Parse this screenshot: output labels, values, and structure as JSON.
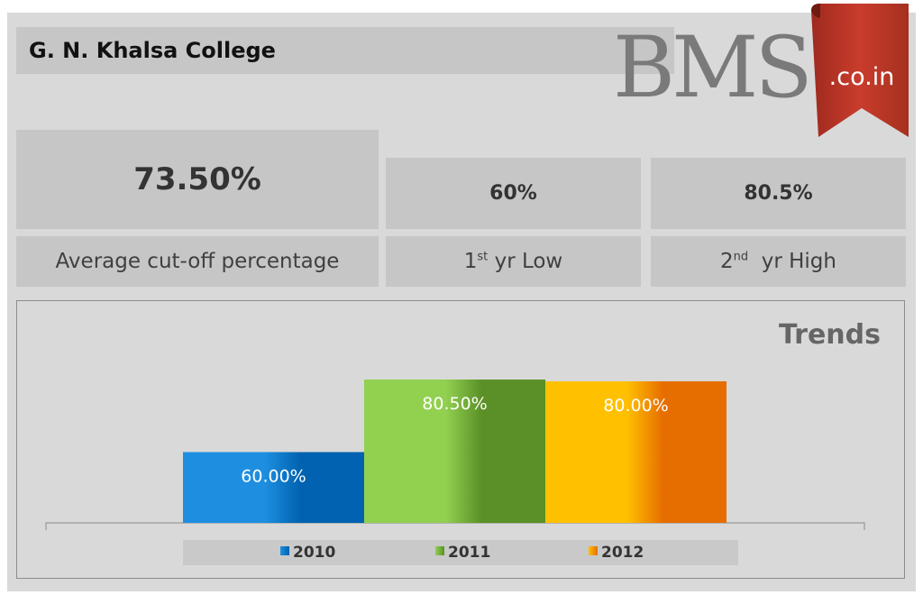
{
  "header": {
    "title": "G. N. Khalsa College",
    "logo_main": "BMS",
    "logo_ribbon": ".co.in"
  },
  "stats": {
    "average": {
      "value": "73.50%",
      "label": "Average cut-off percentage"
    },
    "low": {
      "value": "60%",
      "label_main": "1",
      "label_sup": "st",
      "label_rest": " yr Low"
    },
    "high": {
      "value": "80.5%",
      "label_main": "2",
      "label_sup": "nd",
      "label_rest": "  yr High"
    }
  },
  "trends": {
    "title": "Trends"
  },
  "colors": {
    "card_bg": "#d9d9d9",
    "box_bg": "#c6c6c6",
    "ribbon": "#c0392b",
    "bar_2010": "#0070c0",
    "bar_2011": "#70ad47",
    "bar_2012": "#ffc000"
  },
  "chart_data": {
    "type": "bar",
    "title": "Trends",
    "categories": [
      "2010",
      "2011",
      "2012"
    ],
    "values": [
      60.0,
      80.5,
      80.0
    ],
    "data_labels": [
      "60.00%",
      "80.50%",
      "80.00%"
    ],
    "ylim": [
      40,
      80.5
    ],
    "legend": "bottom",
    "grid": false,
    "series": [
      {
        "name": "2010",
        "color_light": "#1e8fe0",
        "color_dark": "#0062b0"
      },
      {
        "name": "2011",
        "color_light": "#92d050",
        "color_dark": "#5a9027"
      },
      {
        "name": "2012",
        "color_light": "#ffc000",
        "color_dark": "#e66e00"
      }
    ]
  }
}
